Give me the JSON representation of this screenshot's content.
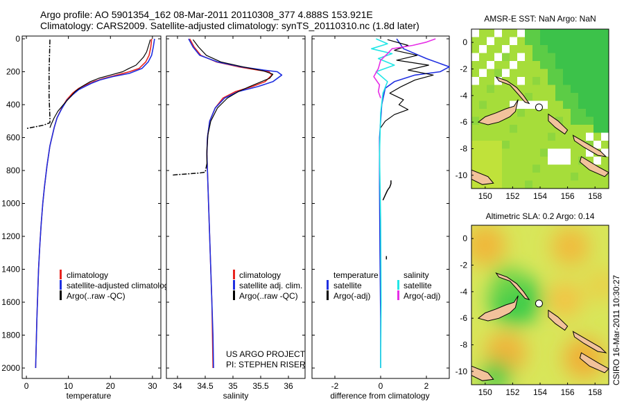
{
  "header": {
    "line1": "Argo profile: AO 5901354_162 08-Mar-2011 20110308_377 4.888S 153.921E",
    "line2": "Climatology: CARS2009. Satellite-adjusted climatology: synTS_20110310.nc (1.8d later)"
  },
  "watermark": "CSIRO 16-Mar-2011 10:30:27",
  "colors": {
    "climatology": "#e8231e",
    "satellite": "#1f2fe0",
    "argo": "#000000",
    "sal_satellite": "#22e6e6",
    "sal_argo": "#e62ee6",
    "land": "#f2c29b"
  },
  "chart_data": [
    {
      "type": "line",
      "id": "temperature",
      "xlabel": "temperature",
      "xlim": [
        -1,
        32
      ],
      "ylim": [
        0,
        2050
      ],
      "xticks": [
        0,
        10,
        20,
        30
      ],
      "yticks": [
        0,
        200,
        400,
        600,
        800,
        1000,
        1200,
        1400,
        1600,
        1800,
        2000
      ],
      "legend": [
        "climatology",
        "satellite-adjusted climatology",
        "Argo(..raw -QC)"
      ],
      "series": [
        {
          "name": "climatology",
          "color": "climatology",
          "width": 1.6,
          "dash": "",
          "x": [
            29.8,
            29.6,
            29.2,
            28.4,
            26.8,
            24.5,
            21.5,
            18.5,
            16.0,
            14.2,
            12.5,
            11.0,
            9.6,
            8.4,
            7.3,
            6.6,
            5.6,
            4.9,
            4.3,
            3.9,
            3.5,
            3.2,
            2.9,
            2.7,
            2.5,
            2.35,
            2.25,
            2.2
          ],
          "y": [
            0,
            50,
            100,
            140,
            180,
            200,
            220,
            240,
            260,
            280,
            300,
            330,
            370,
            420,
            480,
            540,
            650,
            770,
            900,
            1000,
            1130,
            1250,
            1400,
            1550,
            1700,
            1850,
            1950,
            2000
          ]
        },
        {
          "name": "satellite",
          "color": "satellite",
          "width": 1.6,
          "dash": "",
          "x": [
            30.5,
            30.2,
            29.8,
            29.0,
            27.5,
            24.5,
            20.5,
            17.5,
            15.5,
            13.9,
            12.4,
            11.0,
            9.6,
            8.4,
            7.3,
            6.6,
            5.6,
            4.9,
            4.3,
            3.9,
            3.5,
            3.2,
            2.9,
            2.7,
            2.5,
            2.35,
            2.25,
            2.2
          ],
          "y": [
            0,
            50,
            100,
            140,
            180,
            210,
            230,
            250,
            270,
            290,
            310,
            340,
            375,
            425,
            480,
            540,
            650,
            770,
            900,
            1000,
            1130,
            1250,
            1400,
            1550,
            1700,
            1850,
            1950,
            2000
          ]
        },
        {
          "name": "Argo",
          "color": "argo",
          "width": 1.2,
          "dash": "",
          "x": [
            29.5,
            29.1,
            28.6,
            27.9,
            27.2,
            26.1,
            24.4,
            22.9,
            20.0,
            17.2,
            15.2,
            13.2,
            11.6,
            10.2,
            8.8,
            7.5,
            6.6,
            5.9,
            5.6
          ],
          "y": [
            5,
            40,
            80,
            110,
            130,
            160,
            180,
            200,
            220,
            240,
            260,
            290,
            320,
            360,
            400,
            440,
            480,
            520,
            540
          ]
        },
        {
          "name": "Argo QC",
          "color": "argo",
          "width": 1.5,
          "dash": "7,2,2,2",
          "x": [
            5.6,
            5.5,
            5.4,
            5.4,
            5.6,
            5.6,
            4.0,
            2.0,
            0.0
          ],
          "y": [
            5,
            100,
            200,
            350,
            480,
            510,
            525,
            535,
            545
          ]
        }
      ]
    },
    {
      "type": "line",
      "id": "salinity",
      "xlabel": "salinity",
      "xlim": [
        33.8,
        36.3
      ],
      "ylim": [
        0,
        2050
      ],
      "xticks": [
        34,
        34.5,
        35,
        35.5,
        36
      ],
      "yticks": [
        0,
        200,
        400,
        600,
        800,
        1000,
        1200,
        1400,
        1600,
        1800,
        2000
      ],
      "legend": [
        "climatology",
        "satellite adj. clim.",
        "Argo(..raw -QC)"
      ],
      "annotation": [
        "US ARGO PROJECT",
        "PI: STEPHEN RISER"
      ],
      "series": [
        {
          "name": "climatology",
          "color": "climatology",
          "width": 1.6,
          "dash": "",
          "x": [
            34.22,
            34.3,
            34.42,
            34.7,
            35.1,
            35.45,
            35.65,
            35.7,
            35.58,
            35.35,
            35.05,
            34.82,
            34.68,
            34.58,
            34.54,
            34.53,
            34.54,
            34.56,
            34.58,
            34.6,
            34.62,
            34.63,
            34.64
          ],
          "y": [
            0,
            50,
            100,
            140,
            170,
            190,
            200,
            220,
            260,
            290,
            320,
            360,
            420,
            500,
            600,
            700,
            800,
            1000,
            1200,
            1400,
            1600,
            1800,
            2000
          ]
        },
        {
          "name": "satellite",
          "color": "satellite",
          "width": 1.6,
          "dash": "",
          "x": [
            34.2,
            34.28,
            34.4,
            34.72,
            35.15,
            35.55,
            35.8,
            35.88,
            35.72,
            35.45,
            35.1,
            34.85,
            34.68,
            34.58,
            34.54,
            34.53,
            34.54,
            34.56,
            34.58,
            34.6,
            34.62,
            34.64,
            34.65
          ],
          "y": [
            0,
            50,
            100,
            140,
            170,
            190,
            200,
            220,
            260,
            290,
            320,
            360,
            420,
            500,
            600,
            700,
            800,
            1000,
            1200,
            1400,
            1600,
            1800,
            2000
          ]
        },
        {
          "name": "Argo",
          "color": "argo",
          "width": 1.2,
          "dash": "",
          "x": [
            34.28,
            34.38,
            34.52,
            34.78,
            35.18,
            35.55,
            35.72,
            35.66,
            35.48,
            35.3,
            35.1,
            34.9,
            34.72,
            34.6,
            34.55,
            34.53,
            34.53
          ],
          "y": [
            5,
            50,
            100,
            140,
            170,
            195,
            215,
            240,
            265,
            290,
            320,
            360,
            420,
            500,
            580,
            680,
            760
          ]
        },
        {
          "name": "Argo QC",
          "color": "argo",
          "width": 1.5,
          "dash": "7,2,2,2",
          "x": [
            34.53,
            34.5,
            34.4,
            34.2,
            34.0,
            33.9
          ],
          "y": [
            760,
            810,
            815,
            820,
            825,
            828
          ]
        }
      ]
    },
    {
      "type": "line",
      "id": "difference",
      "xlabel": "difference from climatology",
      "xlim": [
        -3,
        3
      ],
      "ylim": [
        0,
        2050
      ],
      "xticks": [
        -2,
        0,
        2
      ],
      "yticks": [
        0,
        200,
        400,
        600,
        800,
        1000,
        1200,
        1400,
        1600,
        1800,
        2000
      ],
      "legend_left_title": "temperature",
      "legend_left": [
        "satellite",
        "Argo(-adj)"
      ],
      "legend_right_title": "salinity",
      "legend_right": [
        "satellite",
        "Argo(-adj)"
      ],
      "series": [
        {
          "name": "temp satellite",
          "color": "satellite",
          "width": 1.6,
          "dash": "",
          "x": [
            0.7,
            1.0,
            2.0,
            3.0,
            2.6,
            1.5,
            0.6,
            0.2,
            0.05,
            -0.05,
            -0.05,
            -0.03,
            0.0,
            0.0
          ],
          "y": [
            0,
            60,
            120,
            170,
            200,
            220,
            260,
            300,
            400,
            600,
            900,
            1300,
            1700,
            2000
          ]
        },
        {
          "name": "temp Argo",
          "color": "argo",
          "width": 1.2,
          "dash": "",
          "x": [
            0.3,
            1.2,
            0.6,
            1.6,
            0.7,
            2.1,
            1.2,
            2.3,
            1.5,
            0.9,
            0.4,
            1.0,
            0.8,
            1.2,
            0.6,
            0.2,
            0.0
          ],
          "y": [
            5,
            40,
            70,
            100,
            130,
            160,
            190,
            220,
            250,
            290,
            330,
            370,
            400,
            430,
            460,
            500,
            540
          ]
        },
        {
          "name": "temp Argo deep",
          "color": "argo",
          "width": 1.5,
          "dash": "",
          "x": [
            0.45,
            0.45,
            0.4,
            0.3,
            0.2,
            0.1
          ],
          "y": [
            860,
            880,
            900,
            920,
            950,
            980
          ]
        },
        {
          "name": "temp Argo deep2",
          "color": "argo",
          "width": 1.5,
          "dash": "",
          "x": [
            0.25,
            0.25
          ],
          "y": [
            1320,
            1340
          ]
        },
        {
          "name": "sal satellite",
          "color": "sal_satellite",
          "width": 1.6,
          "dash": "",
          "x": [
            -0.2,
            0.3,
            -0.4,
            0.5,
            -0.1,
            0.6,
            -0.2,
            0.3,
            0.1,
            0.0,
            -0.05,
            0.0,
            0.02,
            0.0
          ],
          "y": [
            0,
            30,
            60,
            90,
            120,
            160,
            200,
            260,
            330,
            450,
            700,
            1100,
            1600,
            2000
          ]
        },
        {
          "name": "sal Argo",
          "color": "sal_argo",
          "width": 1.6,
          "dash": "",
          "x": [
            2.4,
            2.0,
            1.4,
            0.5,
            0.3,
            0.0,
            -0.1,
            -0.3,
            -0.05,
            -0.1,
            0.0
          ],
          "y": [
            0,
            20,
            40,
            60,
            90,
            130,
            180,
            230,
            280,
            320,
            360
          ]
        }
      ]
    },
    {
      "type": "heatmap",
      "id": "sst_map",
      "title": "AMSR-E SST: NaN Argo: NaN",
      "xlim": [
        149,
        159
      ],
      "ylim": [
        -11,
        1
      ],
      "xticks": [
        150,
        152,
        154,
        156,
        158
      ],
      "yticks": [
        0,
        -2,
        -4,
        -6,
        -8,
        -10
      ],
      "marker": {
        "lon": 153.921,
        "lat": -4.888
      }
    },
    {
      "type": "heatmap",
      "id": "sla_map",
      "title": "Altimetric SLA: 0.2 Argo: 0.14",
      "xlim": [
        149,
        159
      ],
      "ylim": [
        -11,
        1
      ],
      "xticks": [
        150,
        152,
        154,
        156,
        158
      ],
      "yticks": [
        0,
        -2,
        -4,
        -6,
        -8,
        -10
      ],
      "marker": {
        "lon": 153.921,
        "lat": -4.888
      }
    }
  ]
}
